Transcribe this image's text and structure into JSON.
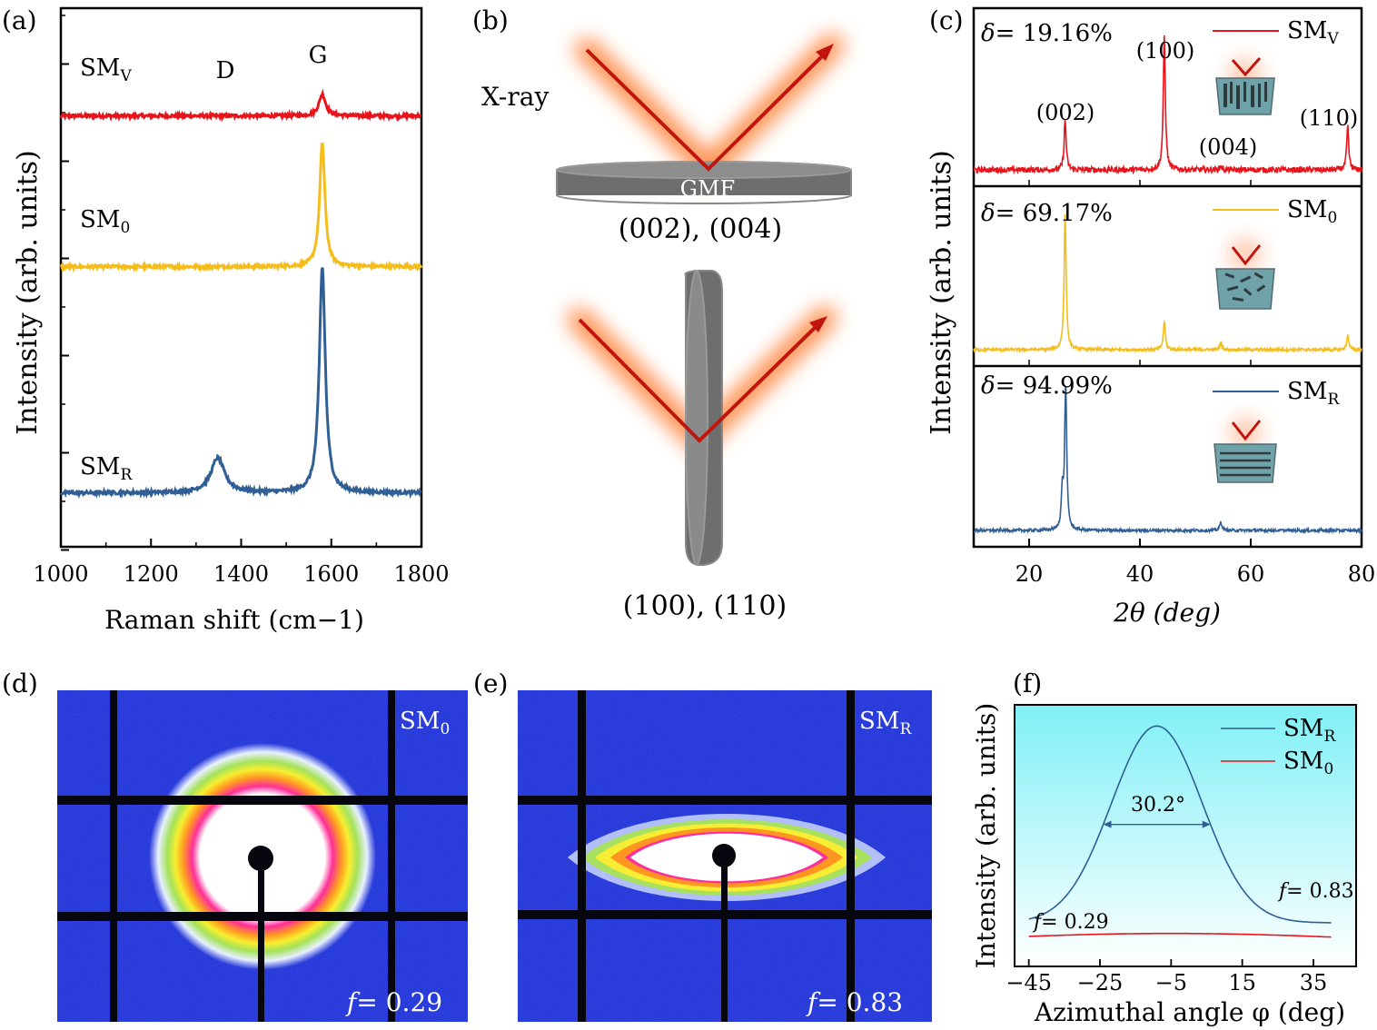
{
  "colors": {
    "sm_v": "#e8141b",
    "sm_0": "#f5bd1c",
    "sm_r": "#2f5f94",
    "arrow": "#c0150f",
    "glow": "#ff7a2f",
    "disk": "#6e6e6e",
    "f_bg_top": "#7ff0f6",
    "f_bg_bottom": "#ffffff",
    "pattern_bg": "#1b2fd8"
  },
  "panel_labels": {
    "a": "(a)",
    "b": "(b)",
    "c": "(c)",
    "d": "(d)",
    "e": "(e)",
    "f": "(f)"
  },
  "labels": {
    "SM": "SM",
    "sub_v": "V",
    "sub_0": "0",
    "sub_r": "R",
    "delta": "δ",
    "f_var": "f"
  },
  "chart_data": [
    {
      "id": "a",
      "type": "line",
      "title": "",
      "xlabel": "Raman shift (cm−1)",
      "ylabel": "Intensity (arb. units)",
      "xlim": [
        1000,
        1800
      ],
      "xticks": [
        "1000",
        "1200",
        "1400",
        "1600",
        "1800"
      ],
      "peak_labels": [
        "D",
        "G"
      ],
      "series": [
        {
          "name": "SMV",
          "label": "SM_V",
          "offset": 0.8,
          "D": 0.0,
          "G": 0.04,
          "G_width": 9,
          "D_width": 20
        },
        {
          "name": "SM0",
          "label": "SM_0",
          "offset": 0.52,
          "D": 0.0,
          "G": 0.23,
          "G_width": 7,
          "D_width": 20
        },
        {
          "name": "SMR",
          "label": "SM_R",
          "offset": 0.1,
          "D": 0.065,
          "G": 0.42,
          "G_width": 8,
          "D_width": 18
        }
      ]
    },
    {
      "id": "b",
      "type": "diagram",
      "xray_label": "X-ray",
      "film_label": "GMF",
      "top_planes": "(002), (004)",
      "bottom_planes": "(100), (110)"
    },
    {
      "id": "c",
      "type": "line",
      "xlabel": "2θ (deg)",
      "ylabel": "Intensity (arb. units)",
      "xlim": [
        10,
        80
      ],
      "xticks": [
        "20",
        "40",
        "60",
        "80"
      ],
      "panels": [
        {
          "name": "SMV",
          "delta": "= 19.16%",
          "peaks": [
            {
              "x": 26.5,
              "h": 0.35
            },
            {
              "x": 44.4,
              "h": 0.95
            },
            {
              "x": 54.6,
              "h": 0.03
            },
            {
              "x": 77.5,
              "h": 0.3
            }
          ],
          "peak_labels": [
            "(002)",
            "(100)",
            "(004)",
            "(110)"
          ]
        },
        {
          "name": "SM0",
          "delta": "= 69.17%",
          "peaks": [
            {
              "x": 26.5,
              "h": 0.95
            },
            {
              "x": 44.4,
              "h": 0.2
            },
            {
              "x": 54.6,
              "h": 0.05
            },
            {
              "x": 77.5,
              "h": 0.1
            }
          ]
        },
        {
          "name": "SMR",
          "delta": "= 94.99%",
          "peaks": [
            {
              "x": 26.0,
              "h": 0.25
            },
            {
              "x": 26.6,
              "h": 1.0
            },
            {
              "x": 54.6,
              "h": 0.06
            }
          ]
        }
      ]
    },
    {
      "id": "d",
      "type": "image",
      "sample": "SM0",
      "f_value": "= 0.29",
      "ring_shape": "circular"
    },
    {
      "id": "e",
      "type": "image",
      "sample": "SMR",
      "f_value": "= 0.83",
      "ring_shape": "elliptical"
    },
    {
      "id": "f",
      "type": "line",
      "xlabel": "Azimuthal angle φ (deg)",
      "ylabel": "Intensity (arb. units)",
      "xlim": [
        -49,
        47
      ],
      "ylim": [
        0,
        1.15
      ],
      "xticks": [
        "−45",
        "−25",
        "−5",
        "15",
        "35"
      ],
      "xtick_values": [
        -45,
        -25,
        -5,
        15,
        35
      ],
      "fwhm_label": "30.2°",
      "series": [
        {
          "name": "SMR",
          "label": "SM_R",
          "center": -9,
          "sigma": 12.8,
          "base": 0.12,
          "amp": 0.93,
          "f_label": "= 0.83"
        },
        {
          "name": "SM0",
          "label": "SM_0",
          "center": -5,
          "sigma": 60,
          "base": 0.0,
          "amp": 0.07,
          "f_label": "= 0.29"
        }
      ]
    }
  ]
}
